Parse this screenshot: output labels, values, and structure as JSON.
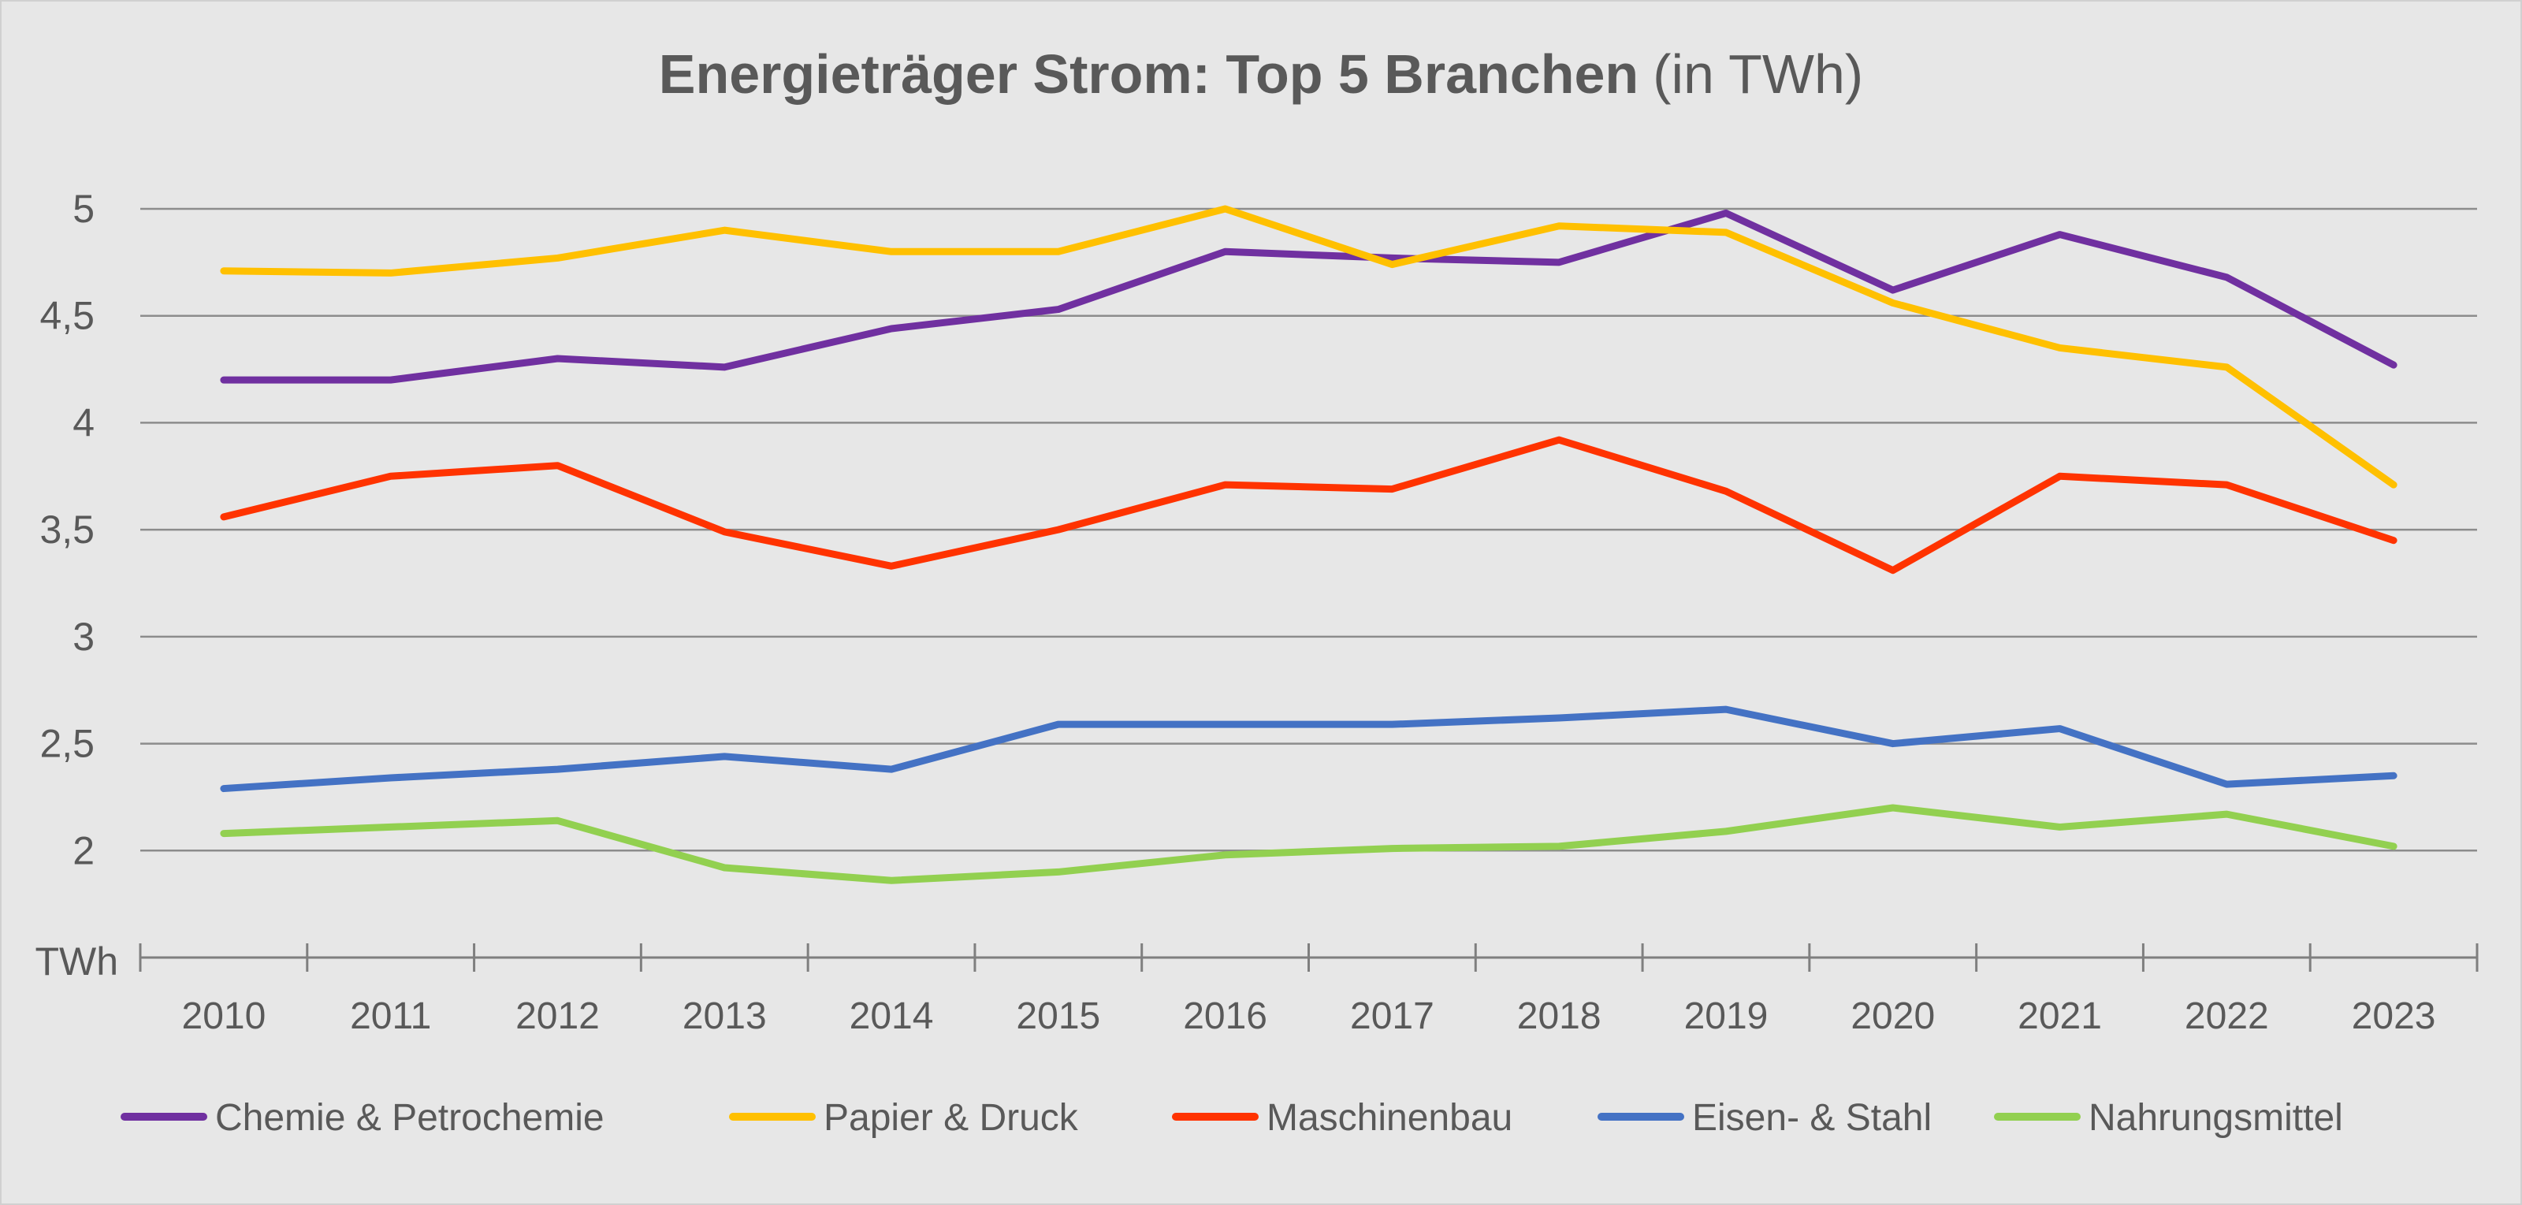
{
  "chart_data": {
    "type": "line",
    "title": "Energieträger Strom: Top 5 Branchen",
    "title_suffix": "(in TWh)",
    "ylabel": "TWh",
    "xlabel": "",
    "ylim": [
      1.5,
      5
    ],
    "yticks": [
      2,
      2.5,
      3,
      3.5,
      4,
      4.5,
      5
    ],
    "ytick_labels": [
      "2",
      "2,5",
      "3",
      "3,5",
      "4",
      "4,5",
      "5"
    ],
    "grid": true,
    "legend": "bottom",
    "categories": [
      "2010",
      "2011",
      "2012",
      "2013",
      "2014",
      "2015",
      "2016",
      "2017",
      "2018",
      "2019",
      "2020",
      "2021",
      "2022",
      "2023"
    ],
    "series": [
      {
        "name": "Chemie & Petrochemie",
        "color": "#7030a0",
        "values": [
          4.2,
          4.2,
          4.3,
          4.26,
          4.44,
          4.53,
          4.8,
          4.77,
          4.75,
          4.98,
          4.62,
          4.88,
          4.68,
          4.27
        ]
      },
      {
        "name": "Papier & Druck",
        "color": "#ffc000",
        "values": [
          4.71,
          4.7,
          4.77,
          4.9,
          4.8,
          4.8,
          5.0,
          4.74,
          4.92,
          4.89,
          4.56,
          4.35,
          4.26,
          3.71
        ]
      },
      {
        "name": "Maschinenbau",
        "color": "#ff3300",
        "values": [
          3.56,
          3.75,
          3.8,
          3.49,
          3.33,
          3.5,
          3.71,
          3.69,
          3.92,
          3.68,
          3.31,
          3.75,
          3.71,
          3.45
        ]
      },
      {
        "name": "Eisen- & Stahl",
        "color": "#4472c4",
        "values": [
          2.29,
          2.34,
          2.38,
          2.44,
          2.38,
          2.59,
          2.59,
          2.59,
          2.62,
          2.66,
          2.5,
          2.57,
          2.31,
          2.35
        ]
      },
      {
        "name": "Nahrungsmittel",
        "color": "#92d050",
        "values": [
          2.08,
          2.11,
          2.14,
          1.92,
          1.86,
          1.9,
          1.98,
          2.01,
          2.02,
          2.09,
          2.2,
          2.11,
          2.17,
          2.02
        ]
      }
    ]
  }
}
